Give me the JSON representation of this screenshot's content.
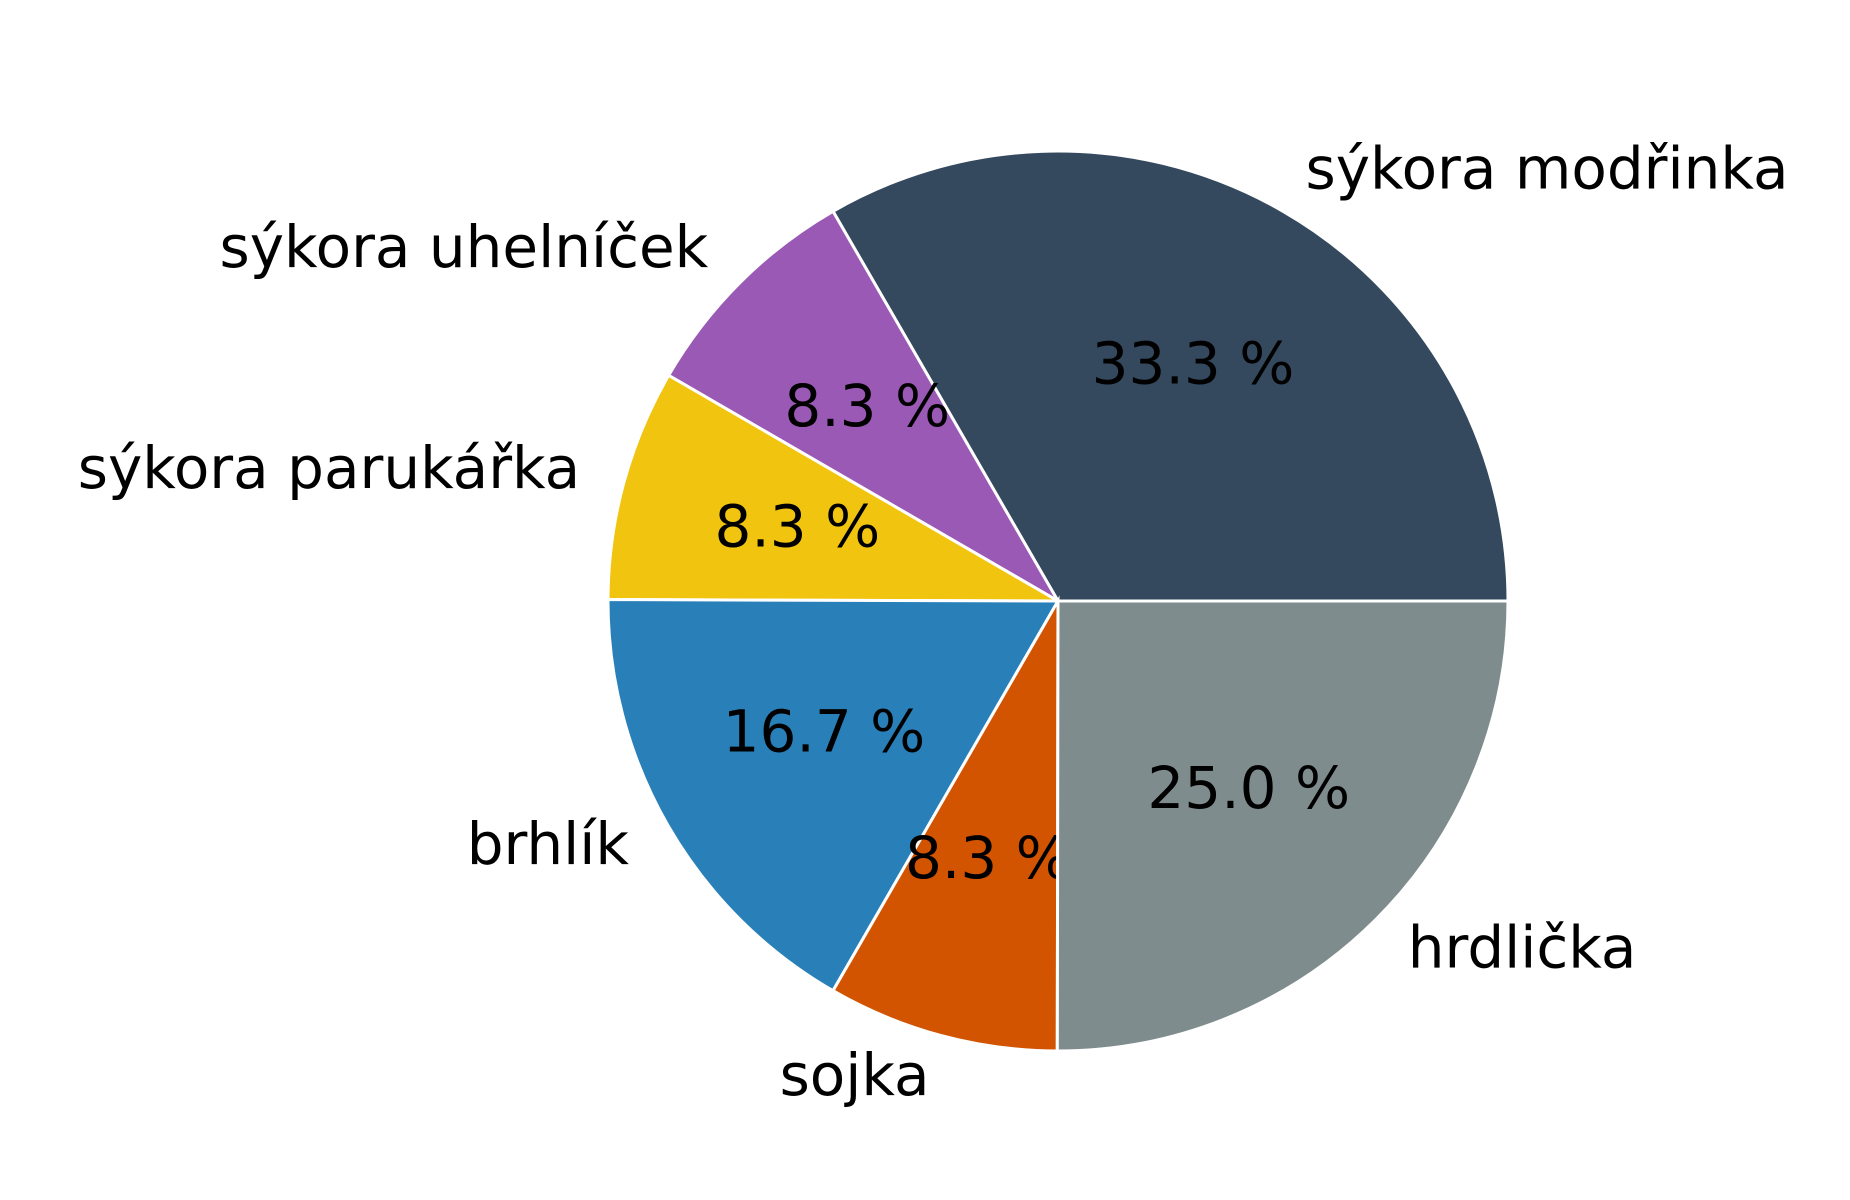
{
  "chart_data": {
    "type": "pie",
    "categories": [
      "sýkora modřinka",
      "sýkora uhelníček",
      "sýkora parukářka",
      "brhlík",
      "sojka",
      "hrdlička"
    ],
    "values": [
      33.3,
      8.3,
      8.3,
      16.7,
      8.3,
      25.0
    ],
    "value_labels": [
      "33.3 %",
      "8.3 %",
      "8.3 %",
      "16.7 %",
      "8.3 %",
      "25.0 %"
    ],
    "colors": [
      "#34495e",
      "#9b59b6",
      "#f1c40f",
      "#2980b9",
      "#d35400",
      "#7f8c8d"
    ],
    "start_angle": 0,
    "counterclockwise": true
  }
}
